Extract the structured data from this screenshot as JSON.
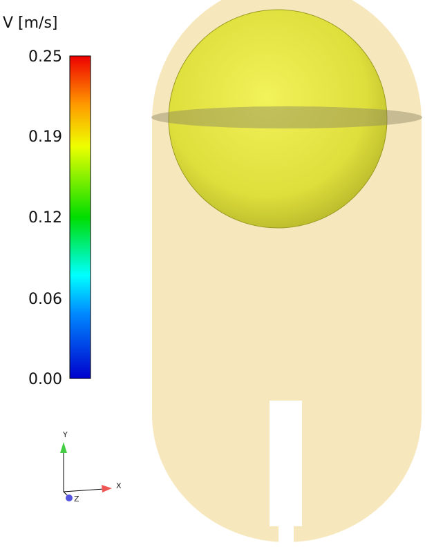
{
  "legend": {
    "title": "V [m/s]",
    "ticks": [
      "0.25",
      "0.19",
      "0.12",
      "0.06",
      "0.00"
    ]
  },
  "triad": {
    "y": "Y",
    "x": "X",
    "z": "Z"
  }
}
